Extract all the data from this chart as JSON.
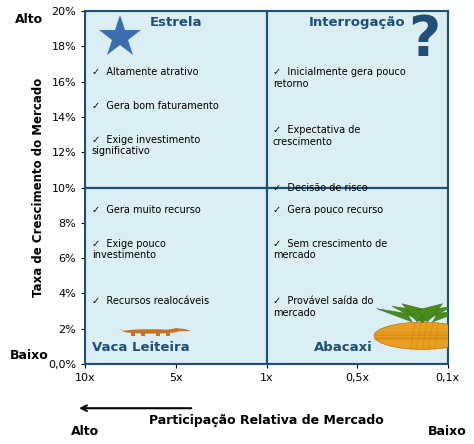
{
  "bg_color": "#ffffff",
  "quadrant_bg": "#daeef3",
  "border_color": "#1f4e79",
  "grid_color": "#1f4e79",
  "ylabel": "Taxa de Crescimento do Mercado",
  "xlabel": "Participação Relativa de Mercado",
  "yticks": [
    0.0,
    2,
    4,
    6,
    8,
    10,
    12,
    14,
    16,
    18,
    20
  ],
  "ytick_labels": [
    "0,0%",
    "2%",
    "4%",
    "6%",
    "8%",
    "10%",
    "12%",
    "14%",
    "16%",
    "18%",
    "20%"
  ],
  "xtick_positions": [
    0,
    1,
    2,
    3,
    4
  ],
  "xtick_labels": [
    "10x",
    "5x",
    "1x",
    "0,5x",
    "0,1x"
  ],
  "quadrant_title_color": "#1f4e79",
  "quadrant_titles": {
    "top_left": "Estrela",
    "top_right": "Interrogação",
    "bottom_left": "Vaca Leiteira",
    "bottom_right": "Abacaxi"
  },
  "star_color": "#3b6faf",
  "question_color": "#1f4e79",
  "cow_color": "#c87228",
  "pineapple_body_color": "#e8a020",
  "pineapple_leaf_color": "#4a8c1c",
  "top_left_bullets": [
    "Altamente atrativo",
    "Gera bom faturamento",
    "Exige investimento\nsignificativo"
  ],
  "top_right_bullets": [
    "Inicialmente gera pouco\nretorno",
    "Expectativa de\ncrescimento",
    "Decisão de risco"
  ],
  "bottom_left_bullets": [
    "Gera muito recurso",
    "Exige pouco\ninvestimento",
    "Recursos realocáveis"
  ],
  "bottom_right_bullets": [
    "Gera pouco recurso",
    "Sem crescimento de\nmercado",
    "Provável saída do\nmercado"
  ],
  "ylabel_top": "Alto",
  "ylabel_bottom": "Baixo",
  "xlabel_left": "Alto",
  "xlabel_right": "Baixo"
}
